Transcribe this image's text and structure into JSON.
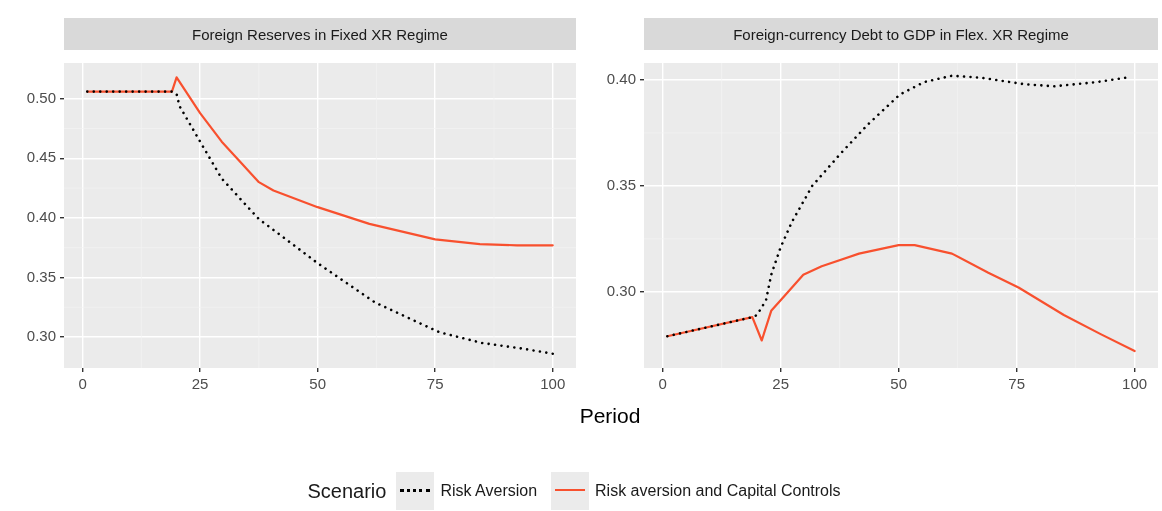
{
  "chart_data": [
    {
      "type": "line",
      "title": "Foreign Reserves in Fixed XR Regime",
      "xlabel": "Period",
      "legend_title": "Scenario",
      "legend": "bottom",
      "grid": true,
      "marker": "none",
      "xlim": [
        -3.95,
        104.95
      ],
      "xticks": [
        0,
        25,
        50,
        75,
        100
      ],
      "ylim": [
        0.274,
        0.53
      ],
      "yticks": [
        {
          "value": 0.3,
          "label": "0.30"
        },
        {
          "value": 0.35,
          "label": "0.35"
        },
        {
          "value": 0.4,
          "label": "0.40"
        },
        {
          "value": 0.45,
          "label": "0.45"
        },
        {
          "value": 0.5,
          "label": "0.50"
        }
      ],
      "series": [
        {
          "name": "Risk Aversion",
          "color": "#000000",
          "line_style": "dotted",
          "x": [
            1,
            19,
            20,
            20.6,
            25,
            29.6,
            37.5,
            42.6,
            50,
            62.2,
            75.9,
            85,
            94,
            100
          ],
          "values": [
            0.506,
            0.506,
            0.504,
            0.494,
            0.464,
            0.433,
            0.399,
            0.384,
            0.362,
            0.329,
            0.304,
            0.295,
            0.29,
            0.286
          ]
        },
        {
          "name": "Risk aversion and Capital Controls",
          "color": "#f8502e",
          "line_style": "solid",
          "x": [
            1,
            19,
            20,
            25,
            29.6,
            34,
            37.5,
            40.6,
            50,
            61,
            75,
            84.5,
            92.4,
            100
          ],
          "values": [
            0.506,
            0.506,
            0.518,
            0.488,
            0.464,
            0.445,
            0.43,
            0.423,
            0.409,
            0.395,
            0.382,
            0.378,
            0.377,
            0.377
          ]
        }
      ]
    },
    {
      "type": "line",
      "title": "Foreign-currency Debt to GDP in Flex. XR Regime",
      "grid": true,
      "marker": "none",
      "xlim": [
        -3.95,
        104.95
      ],
      "xticks": [
        0,
        25,
        50,
        75,
        100
      ],
      "ylim": [
        0.264,
        0.408
      ],
      "yticks": [
        {
          "value": 0.3,
          "label": "0.30"
        },
        {
          "value": 0.35,
          "label": "0.35"
        },
        {
          "value": 0.4,
          "label": "0.40"
        }
      ],
      "series": [
        {
          "color": "#000000",
          "line_style": "dotted",
          "x": [
            1,
            19,
            20,
            21.9,
            23,
            25,
            27.4,
            31.7,
            37.6,
            43.5,
            50.2,
            55.4,
            61.3,
            67.6,
            76.6,
            83,
            92,
            98
          ],
          "values": [
            0.279,
            0.288,
            0.289,
            0.296,
            0.308,
            0.321,
            0.333,
            0.35,
            0.365,
            0.379,
            0.393,
            0.399,
            0.402,
            0.401,
            0.398,
            0.397,
            0.399,
            0.401
          ]
        },
        {
          "color": "#f8502e",
          "line_style": "solid",
          "x": [
            1,
            19,
            21,
            23,
            25,
            29.8,
            33.7,
            41.6,
            50,
            53.4,
            61.3,
            69,
            75.4,
            85,
            92.8,
            100
          ],
          "values": [
            0.279,
            0.288,
            0.277,
            0.291,
            0.296,
            0.308,
            0.312,
            0.318,
            0.322,
            0.322,
            0.318,
            0.309,
            0.302,
            0.289,
            0.28,
            0.272
          ]
        }
      ]
    }
  ]
}
